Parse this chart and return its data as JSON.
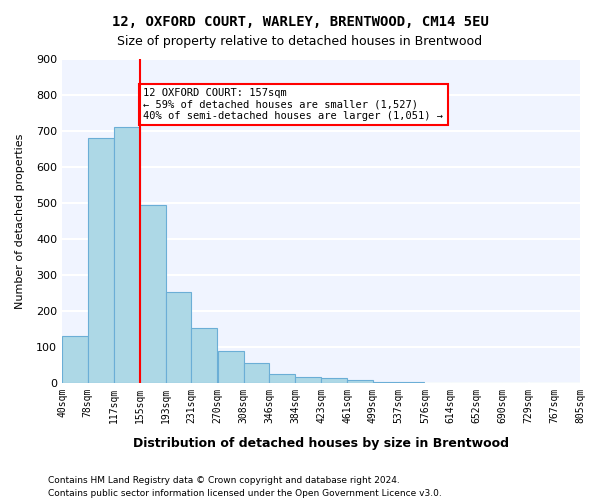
{
  "title": "12, OXFORD COURT, WARLEY, BRENTWOOD, CM14 5EU",
  "subtitle": "Size of property relative to detached houses in Brentwood",
  "xlabel": "Distribution of detached houses by size in Brentwood",
  "ylabel": "Number of detached properties",
  "bar_color": "#add8e6",
  "bar_edge_color": "#6baed6",
  "background_color": "#f0f4ff",
  "grid_color": "#ffffff",
  "annotation_text": "12 OXFORD COURT: 157sqm\n← 59% of detached houses are smaller (1,527)\n40% of semi-detached houses are larger (1,051) →",
  "property_size": 157,
  "property_bin_index": 3,
  "footnote1": "Contains HM Land Registry data © Crown copyright and database right 2024.",
  "footnote2": "Contains public sector information licensed under the Open Government Licence v3.0.",
  "bin_edges": [
    40,
    78,
    117,
    155,
    193,
    231,
    270,
    308,
    346,
    384,
    423,
    461,
    499,
    537,
    576,
    614,
    652,
    690,
    729,
    767,
    805
  ],
  "bin_labels": [
    "40sqm",
    "78sqm",
    "117sqm",
    "155sqm",
    "193sqm",
    "231sqm",
    "270sqm",
    "308sqm",
    "346sqm",
    "384sqm",
    "423sqm",
    "461sqm",
    "499sqm",
    "537sqm",
    "576sqm",
    "614sqm",
    "652sqm",
    "690sqm",
    "729sqm",
    "767sqm",
    "805sqm"
  ],
  "bar_heights": [
    130,
    680,
    710,
    495,
    253,
    152,
    90,
    55,
    25,
    18,
    13,
    7,
    3,
    2,
    1,
    1,
    0,
    0,
    1,
    1
  ],
  "ylim": [
    0,
    900
  ],
  "yticks": [
    0,
    100,
    200,
    300,
    400,
    500,
    600,
    700,
    800,
    900
  ]
}
